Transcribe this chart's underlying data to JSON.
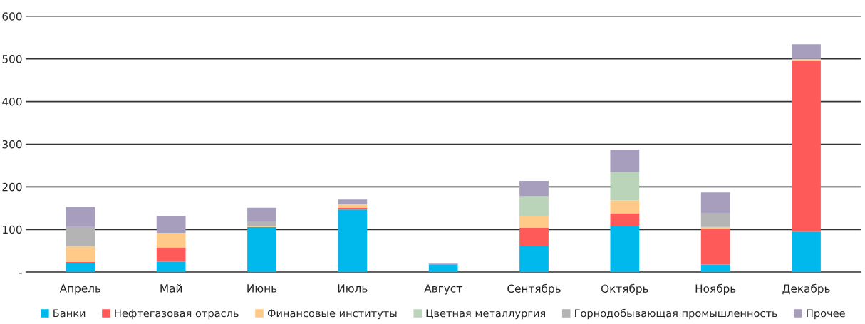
{
  "chart_data": {
    "type": "bar",
    "stacked": true,
    "categories": [
      "Апрель",
      "Май",
      "Июнь",
      "Июль",
      "Август",
      "Сентябрь",
      "Октябрь",
      "Ноябрь",
      "Декабрь"
    ],
    "series": [
      {
        "name": "Банки",
        "color": "#00b9ec",
        "values": [
          22,
          24,
          106,
          147,
          17,
          62,
          108,
          18,
          95
        ]
      },
      {
        "name": "Нефтегазовая отрасль",
        "color": "#ff5a5a",
        "values": [
          2,
          34,
          0,
          4,
          0,
          42,
          30,
          83,
          401
        ]
      },
      {
        "name": "Финансовые институты",
        "color": "#ffca87",
        "values": [
          36,
          34,
          3,
          8,
          0,
          27,
          30,
          5,
          4
        ]
      },
      {
        "name": "Цветная металлургия",
        "color": "#b9d4b9",
        "values": [
          0,
          0,
          0,
          0,
          0,
          47,
          67,
          0,
          0
        ]
      },
      {
        "name": "Горнодобывающая промышленность",
        "color": "#b4b4b4",
        "values": [
          46,
          0,
          10,
          0,
          0,
          0,
          0,
          33,
          0
        ]
      },
      {
        "name": "Прочее",
        "color": "#a79dbd",
        "values": [
          47,
          40,
          32,
          11,
          3,
          36,
          52,
          48,
          34
        ]
      }
    ],
    "ylim": [
      0,
      600
    ],
    "yticks": [
      {
        "value": 0,
        "label": "-"
      },
      100,
      200,
      300,
      400,
      500,
      600
    ],
    "grid": "y",
    "legend": "bottom"
  }
}
